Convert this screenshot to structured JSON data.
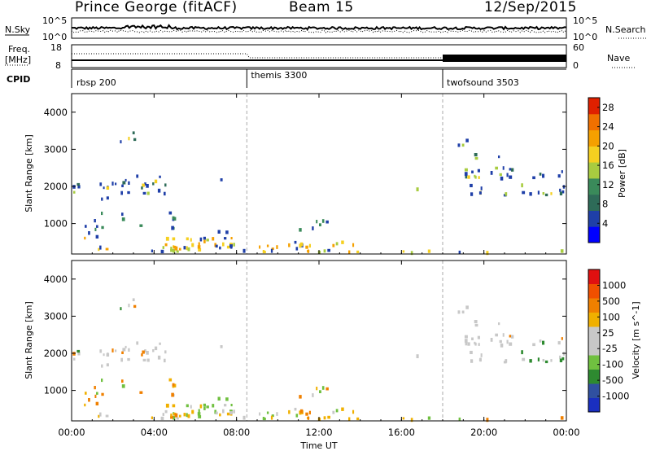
{
  "header": {
    "station": "Prince George (fitACF)",
    "beam": "Beam 15",
    "date": "12/Sep/2015"
  },
  "panel_nsky": {
    "left_label": "N.Sky",
    "right_label": "N.Search",
    "tick_hi": "10^5",
    "tick_lo": "10^0",
    "tick_hi_r": "10^5",
    "tick_lo_r": "10^0"
  },
  "panel_freq": {
    "left_label_1": "Freq.",
    "left_label_2": "[MHz]",
    "left_tick_hi": "18",
    "left_tick_lo": "8",
    "right_label": "Nave",
    "right_tick_hi": "60",
    "right_tick_lo": "0"
  },
  "panel_cpid": {
    "label": "CPID",
    "modes": [
      {
        "name": "rbsp 200",
        "start_hour": 0
      },
      {
        "name": "themis 3300",
        "start_hour": 8.5
      },
      {
        "name": "twofsound 3503",
        "start_hour": 18
      }
    ]
  },
  "colors": {
    "power_bar": [
      "#0000ff",
      "#1f3fa8",
      "#2e6b58",
      "#3a8a5a",
      "#a8cc40",
      "#f5d020",
      "#f5a000",
      "#f07000",
      "#e02000"
    ],
    "velocity_bar": [
      "#e01010",
      "#f05000",
      "#f08000",
      "#f0b000",
      "#c8c8c8",
      "#c8c8c8",
      "#70c040",
      "#2e8a30",
      "#3050a0",
      "#1a2fc0"
    ]
  },
  "chart_data": [
    {
      "type": "heatmap",
      "name_label": "Power",
      "ylabel": "Slant Range [km]",
      "xlabel": "",
      "x_ticks": [
        "00:00",
        "04:00",
        "08:00",
        "12:00",
        "16:00",
        "20:00",
        "00:00"
      ],
      "xlim_hours": [
        0,
        24
      ],
      "y_ticks": [
        "1000",
        "2000",
        "3000",
        "4000"
      ],
      "ylim": [
        180,
        4500
      ],
      "colorbar_label": "Power [dB]",
      "colorbar_ticks": [
        "4",
        "8",
        "12",
        "16",
        "20",
        "24",
        "28"
      ],
      "colorbar_range": [
        0,
        30
      ]
    },
    {
      "type": "heatmap",
      "name_label": "Velocity",
      "ylabel": "Slant Range [km]",
      "xlabel": "Time UT",
      "x_ticks": [
        "00:00",
        "04:00",
        "08:00",
        "12:00",
        "16:00",
        "20:00",
        "00:00"
      ],
      "xlim_hours": [
        0,
        24
      ],
      "y_ticks": [
        "1000",
        "2000",
        "3000",
        "4000"
      ],
      "ylim": [
        180,
        4500
      ],
      "colorbar_label": "Velocity [m s^-1]",
      "colorbar_ticks": [
        "1000",
        "500",
        "100",
        "25",
        "-25",
        "-100",
        "-500",
        "-1000"
      ]
    }
  ],
  "scatter_regions": [
    {
      "t0": 0.0,
      "t1": 4.6,
      "r0": 1950,
      "r1": 2100,
      "d": 0.55
    },
    {
      "t0": 0.0,
      "t1": 2.0,
      "r0": 1650,
      "r1": 2000,
      "d": 0.35
    },
    {
      "t0": 2.0,
      "t1": 4.8,
      "r0": 1800,
      "r1": 2300,
      "d": 0.45
    },
    {
      "t0": 2.0,
      "t1": 3.7,
      "r0": 3150,
      "r1": 3450,
      "d": 0.35
    },
    {
      "t0": 0.2,
      "t1": 0.7,
      "r0": 3500,
      "r1": 3620,
      "d": 0.25
    },
    {
      "t0": 0.0,
      "t1": 1.5,
      "r0": 600,
      "r1": 950,
      "d": 0.55
    },
    {
      "t0": 0.5,
      "t1": 1.8,
      "r0": 260,
      "r1": 480,
      "d": 0.35
    },
    {
      "t0": 1.0,
      "t1": 2.5,
      "r0": 850,
      "r1": 1300,
      "d": 0.25
    },
    {
      "t0": 3.2,
      "t1": 5.8,
      "r0": 850,
      "r1": 1300,
      "d": 0.25
    },
    {
      "t0": 2.5,
      "t1": 8.0,
      "r0": 240,
      "r1": 450,
      "d": 0.45
    },
    {
      "t0": 3.8,
      "t1": 6.5,
      "r0": 280,
      "r1": 600,
      "d": 0.65
    },
    {
      "t0": 6.3,
      "t1": 8.2,
      "r0": 380,
      "r1": 800,
      "d": 0.5
    },
    {
      "t0": 7.5,
      "t1": 12.5,
      "r0": 220,
      "r1": 450,
      "d": 0.65
    },
    {
      "t0": 10.5,
      "t1": 14.0,
      "r0": 200,
      "r1": 500,
      "d": 0.5
    },
    {
      "t0": 11.0,
      "t1": 12.5,
      "r0": 780,
      "r1": 1150,
      "d": 0.4
    },
    {
      "t0": 13.0,
      "t1": 17.0,
      "r0": 200,
      "r1": 300,
      "d": 0.15
    },
    {
      "t0": 17.0,
      "t1": 21.0,
      "r0": 200,
      "r1": 280,
      "d": 0.4
    },
    {
      "t0": 21.0,
      "t1": 24.0,
      "r0": 200,
      "r1": 260,
      "d": 0.25
    },
    {
      "t0": 18.4,
      "t1": 19.2,
      "r0": 2800,
      "r1": 3350,
      "d": 0.3
    },
    {
      "t0": 19.0,
      "t1": 24.0,
      "r0": 2200,
      "r1": 2500,
      "d": 0.6
    },
    {
      "t0": 19.3,
      "t1": 24.0,
      "r0": 1750,
      "r1": 2050,
      "d": 0.5
    },
    {
      "t0": 19.5,
      "t1": 21.0,
      "r0": 2600,
      "r1": 2950,
      "d": 0.25
    },
    {
      "t0": 7.2,
      "t1": 7.4,
      "r0": 1800,
      "r1": 2200,
      "d": 0.6
    },
    {
      "t0": 15.5,
      "t1": 17.3,
      "r0": 1700,
      "r1": 2100,
      "d": 0.08
    }
  ]
}
